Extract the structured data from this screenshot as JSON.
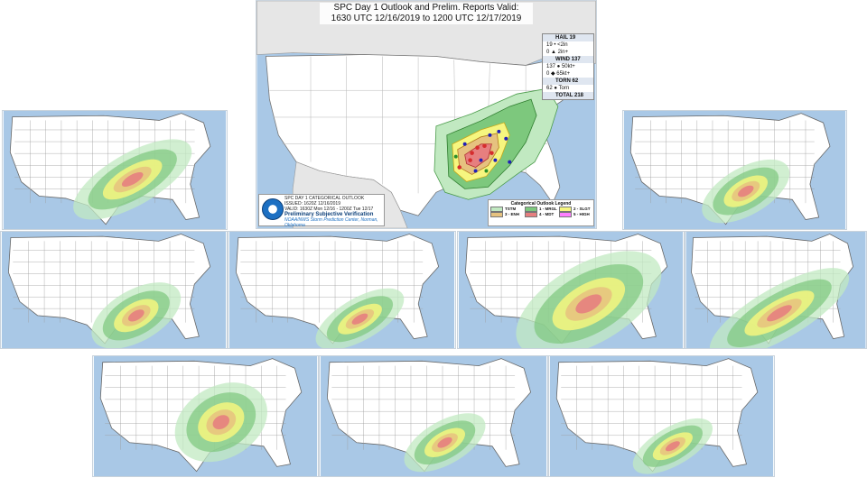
{
  "colors": {
    "ocean": "#a9c8e6",
    "land": "#ffffff",
    "foreign_land": "#e6e6e6",
    "tstm": "#c1e9c1",
    "mrgl": "#7dc87d",
    "slgt": "#f6f67f",
    "enh": "#e6c27f",
    "mdt": "#e67f7f",
    "high": "#ff7fff"
  },
  "main_panel": {
    "title_line1": "SPC Day 1 Outlook and Prelim. Reports Valid:",
    "title_line2": "1630 UTC 12/16/2019 to 1200 UTC 12/17/2019",
    "info_lines": [
      "SPC DAY 1 CATEGORICAL OUTLOOK",
      "ISSUED: 1620Z 12/16/2019",
      "VALID: 1630Z Mon 12/16 - 1200Z Tue 12/17"
    ],
    "info_heading": "Preliminary Subjective Verification",
    "info_footer": "NOAA/NWS Storm Prediction Center, Norman, Oklahoma",
    "reports": {
      "hail_header": "HAIL 19",
      "hail_rows": [
        "19 • <2in",
        "0 ▲ 2in+"
      ],
      "wind_header": "WIND 137",
      "wind_rows": [
        "137 ● 50kt+",
        "0 ◆ 65kt+"
      ],
      "torn_header": "TORN 62",
      "torn_rows": [
        "62 ● Torn"
      ],
      "total": "TOTAL 218"
    },
    "legend_title": "Categorical Outlook Legend",
    "legend_items": [
      "TSTM",
      "1 - MRGL",
      "2 - SLGT",
      "3 - ENH",
      "4 - MDT",
      "5 - HIGH"
    ]
  },
  "small_panels": [
    {
      "name": "forecast-panel-top-left"
    },
    {
      "name": "forecast-panel-top-right"
    },
    {
      "name": "forecast-panel-row2-1"
    },
    {
      "name": "forecast-panel-row2-2"
    },
    {
      "name": "forecast-panel-row2-3"
    },
    {
      "name": "forecast-panel-row2-4"
    },
    {
      "name": "forecast-panel-bottom-1"
    },
    {
      "name": "forecast-panel-bottom-2"
    },
    {
      "name": "forecast-panel-bottom-3"
    }
  ]
}
